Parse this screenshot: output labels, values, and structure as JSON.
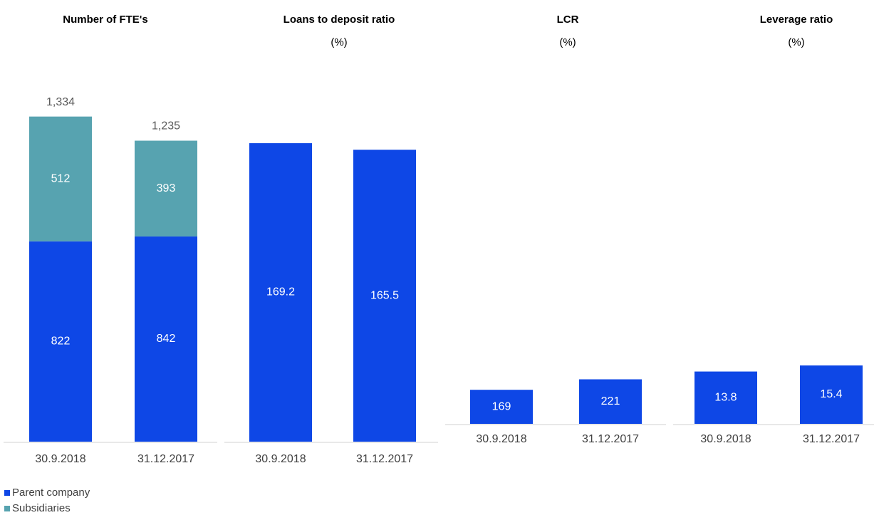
{
  "chart_data": [
    {
      "type": "stacked_bar",
      "title": "Number of FTE's",
      "categories": [
        "30.9.2018",
        "31.12.2017"
      ],
      "series": [
        {
          "name": "Parent company",
          "color": "#0e47e6",
          "values": [
            822,
            842
          ]
        },
        {
          "name": "Subsidiaries",
          "color": "#57a3b0",
          "values": [
            512,
            393
          ]
        }
      ],
      "totals": [
        1334,
        1235
      ],
      "total_labels": [
        "1,334",
        "1,235"
      ],
      "ylim": [
        0,
        1520
      ]
    },
    {
      "type": "bar",
      "title": "Loans to deposit ratio",
      "subtitle": "(%)",
      "categories": [
        "30.9.2018",
        "31.12.2017"
      ],
      "values": [
        169.2,
        165.5
      ],
      "color": "#0e47e6",
      "ylim": [
        0,
        210
      ]
    },
    {
      "type": "bar",
      "title": "LCR",
      "subtitle": "(%)",
      "categories": [
        "30.9.2018",
        "31.12.2017"
      ],
      "values": [
        169,
        221
      ],
      "color": "#0e47e6",
      "ylim": [
        0,
        1750
      ]
    },
    {
      "type": "bar",
      "title": "Leverage ratio",
      "subtitle": "(%)",
      "categories": [
        "30.9.2018",
        "31.12.2017"
      ],
      "values": [
        13.8,
        15.4
      ],
      "color": "#0e47e6",
      "ylim": [
        0,
        93
      ]
    }
  ]
}
